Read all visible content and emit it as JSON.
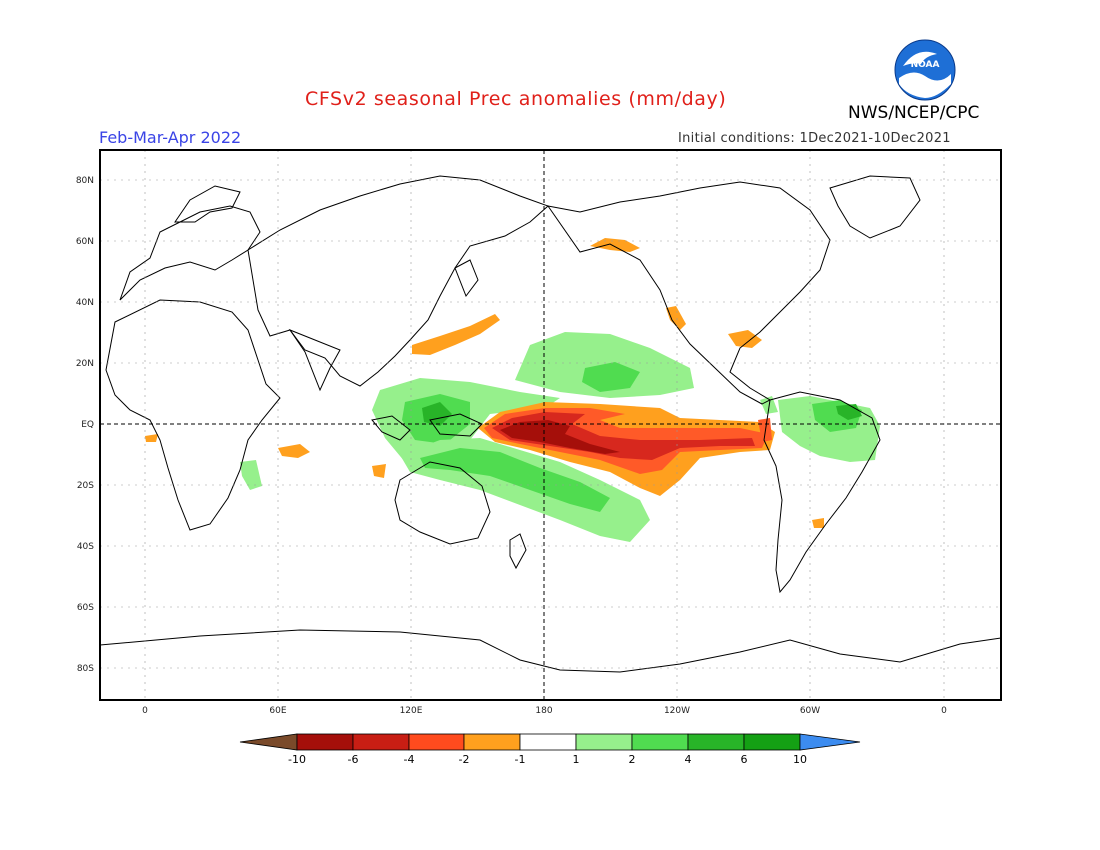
{
  "header": {
    "title": "CFSv2 seasonal Prec anomalies (mm/day)",
    "agency": "NWS/NCEP/CPC",
    "season": "Feb-Mar-Apr 2022",
    "initial_conditions": "Initial conditions: 1Dec2021-10Dec2021",
    "logo_text": "NOAA"
  },
  "axes": {
    "lat_labels": [
      "80N",
      "60N",
      "40N",
      "20N",
      "EQ",
      "20S",
      "40S",
      "60S",
      "80S"
    ],
    "lon_labels": [
      "0",
      "60E",
      "120E",
      "180",
      "120W",
      "60W",
      "0"
    ]
  },
  "colorbar": {
    "labels": [
      "-10",
      "-6",
      "-4",
      "-2",
      "-1",
      "1",
      "2",
      "4",
      "6",
      "10"
    ],
    "colors": [
      "#7a4a2a",
      "#a50f0a",
      "#c81e14",
      "#ff4b1e",
      "#ffa01e",
      "#ffffff",
      "#96f08c",
      "#50dc50",
      "#28b428",
      "#14a014",
      "#3c8cf0"
    ]
  },
  "anomaly_colors": {
    "dry_extreme": "#a50f0a",
    "dry_strong": "#d7281e",
    "dry_moderate": "#ff5a28",
    "dry_weak": "#ffa01e",
    "wet_weak": "#96f08c",
    "wet_moderate": "#50dc50",
    "wet_strong": "#28b428"
  }
}
